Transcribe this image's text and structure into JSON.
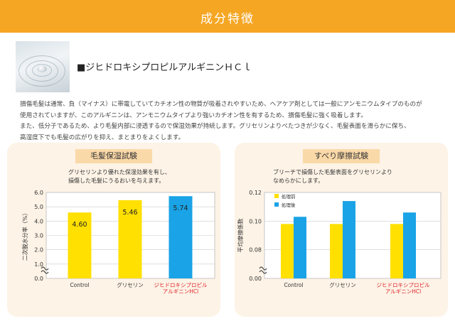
{
  "header": {
    "title": "成分特徴"
  },
  "ingredient": {
    "name": "■ジヒドロキシプロピルアルギニンＨＣｌ"
  },
  "description": {
    "lines": [
      "損傷毛髪は通常、負（マイナス）に帯電していてカチオン性の物質が吸着されやすいため、ヘアケア剤としては一般にアンモニウムタイプのものが",
      "使用されていますが、このアルギニンは、アンモニウムタイプより強いカチオン性を有するため、損傷毛髪に強く吸着します。",
      "また、低分子であるため、より毛髪内部に浸透するので保湿効果が持続します。グリセリンよりべたつきが少なく、毛髪表面を滑らかに保ち、",
      "高湿度下でも毛髪の広がりを抑え、まとまりをよくします。"
    ]
  },
  "panels": {
    "moisture": {
      "title": "毛髪保湿試験",
      "desc": [
        "グリセリンより優れた保湿効果を有し、",
        "損傷した毛髪にうるおいを与えます。"
      ]
    },
    "friction": {
      "title": "すべり摩擦試験",
      "desc": [
        "ブリーチで損傷した毛髪表面をグリセリンより",
        "なめらかにします。"
      ]
    }
  },
  "chart_data": [
    {
      "type": "bar",
      "title": "毛髪保湿試験",
      "ylabel": "二次脱水分率（%）",
      "ylim": [
        0,
        6
      ],
      "yticks": [
        "0.0",
        "1.0",
        "2.0",
        "3.0",
        "4.0",
        "5.0",
        "6.0"
      ],
      "axis_break": true,
      "categories": [
        "Control",
        "グリセリン",
        "ジヒドロキシプロピル|アルギニンHCl"
      ],
      "values": [
        4.6,
        5.46,
        5.74
      ],
      "value_labels": [
        "4.60",
        "5.46",
        "5.74"
      ],
      "colors": [
        "#ffe000",
        "#ffe000",
        "#1aa3e6"
      ],
      "highlight_category_color": "#e0252b"
    },
    {
      "type": "bar",
      "title": "すべり摩擦試験",
      "ylabel": "平均摩擦係数",
      "ylim": [
        0.06,
        0.12
      ],
      "yticks": [
        "0.00",
        "0.08",
        "0.10",
        "0.12"
      ],
      "axis_break": true,
      "legend_position": "top-left",
      "categories": [
        "Control",
        "グリセリン",
        "ジヒドロキシプロピル|アルギニンHCl"
      ],
      "series": [
        {
          "name": "処理前",
          "values": [
            0.098,
            0.098,
            0.098
          ],
          "color": "#ffe000"
        },
        {
          "name": "処理後",
          "values": [
            0.103,
            0.114,
            0.106
          ],
          "color": "#1aa3e6"
        }
      ],
      "highlight_category_color": "#e0252b"
    }
  ]
}
